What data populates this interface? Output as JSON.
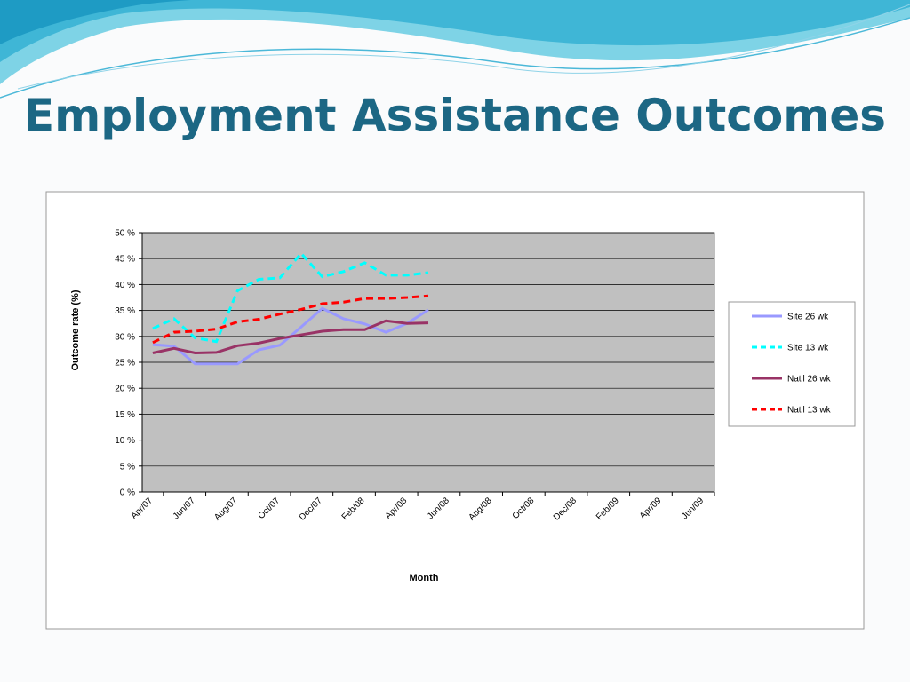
{
  "chart_data": {
    "type": "line",
    "title": "Employment Assistance Outcomes",
    "y_label": "Outcome rate (%)",
    "x_label": "Month",
    "categories": [
      "Apr/07",
      null,
      "Jun/07",
      null,
      "Aug/07",
      null,
      "Oct/07",
      null,
      "Dec/07",
      null,
      "Feb/08",
      null,
      "Apr/08",
      null,
      "Jun/08",
      null,
      "Aug/08",
      null,
      "Oct/08",
      null,
      "Dec/08",
      null,
      "Feb/09",
      null,
      "Apr/09",
      null,
      "Jun/09"
    ],
    "series": [
      {
        "name": "Site 26 wk",
        "color": "#9999ff",
        "dash": false,
        "values": [
          28.4,
          28.1,
          24.7,
          24.7,
          24.7,
          27.4,
          28.3,
          31.8,
          35.4,
          33.4,
          32.4,
          30.8,
          32.5,
          35.1,
          null,
          null,
          null,
          null,
          null,
          null,
          null,
          null,
          null,
          null,
          null,
          null,
          null
        ]
      },
      {
        "name": "Site 13 wk",
        "color": "#00ffff",
        "dash": true,
        "values": [
          31.5,
          33.4,
          29.7,
          29.0,
          38.8,
          41.0,
          41.3,
          46.0,
          41.5,
          42.5,
          44.2,
          41.8,
          41.8,
          42.3,
          null,
          null,
          null,
          null,
          null,
          null,
          null,
          null,
          null,
          null,
          null,
          null,
          null
        ]
      },
      {
        "name": "Nat'l 26 wk",
        "color": "#993366",
        "dash": false,
        "values": [
          26.8,
          27.7,
          26.8,
          26.9,
          28.2,
          28.7,
          29.6,
          30.3,
          31.0,
          31.3,
          31.3,
          33.0,
          32.5,
          32.6,
          null,
          null,
          null,
          null,
          null,
          null,
          null,
          null,
          null,
          null,
          null,
          null,
          null
        ]
      },
      {
        "name": "Nat'l 13 wk",
        "color": "#ff0000",
        "dash": true,
        "values": [
          28.8,
          30.8,
          31.0,
          31.4,
          32.8,
          33.3,
          34.3,
          35.2,
          36.3,
          36.6,
          37.3,
          37.3,
          37.5,
          37.8,
          null,
          null,
          null,
          null,
          null,
          null,
          null,
          null,
          null,
          null,
          null,
          null,
          null
        ]
      }
    ],
    "ylim": [
      0,
      50
    ],
    "yticks": [
      {
        "value": 0,
        "label": "0 %"
      },
      {
        "value": 5,
        "label": "5 %"
      },
      {
        "value": 10,
        "label": "10 %"
      },
      {
        "value": 15,
        "label": "15 %"
      },
      {
        "value": 20,
        "label": "20 %"
      },
      {
        "value": 25,
        "label": "25 %"
      },
      {
        "value": 30,
        "label": "30 %"
      },
      {
        "value": 35,
        "label": "35 %"
      },
      {
        "value": 40,
        "label": "40 %"
      },
      {
        "value": 45,
        "label": "45 %"
      },
      {
        "value": 50,
        "label": "50 %"
      }
    ],
    "grid": true,
    "legend": "right"
  }
}
